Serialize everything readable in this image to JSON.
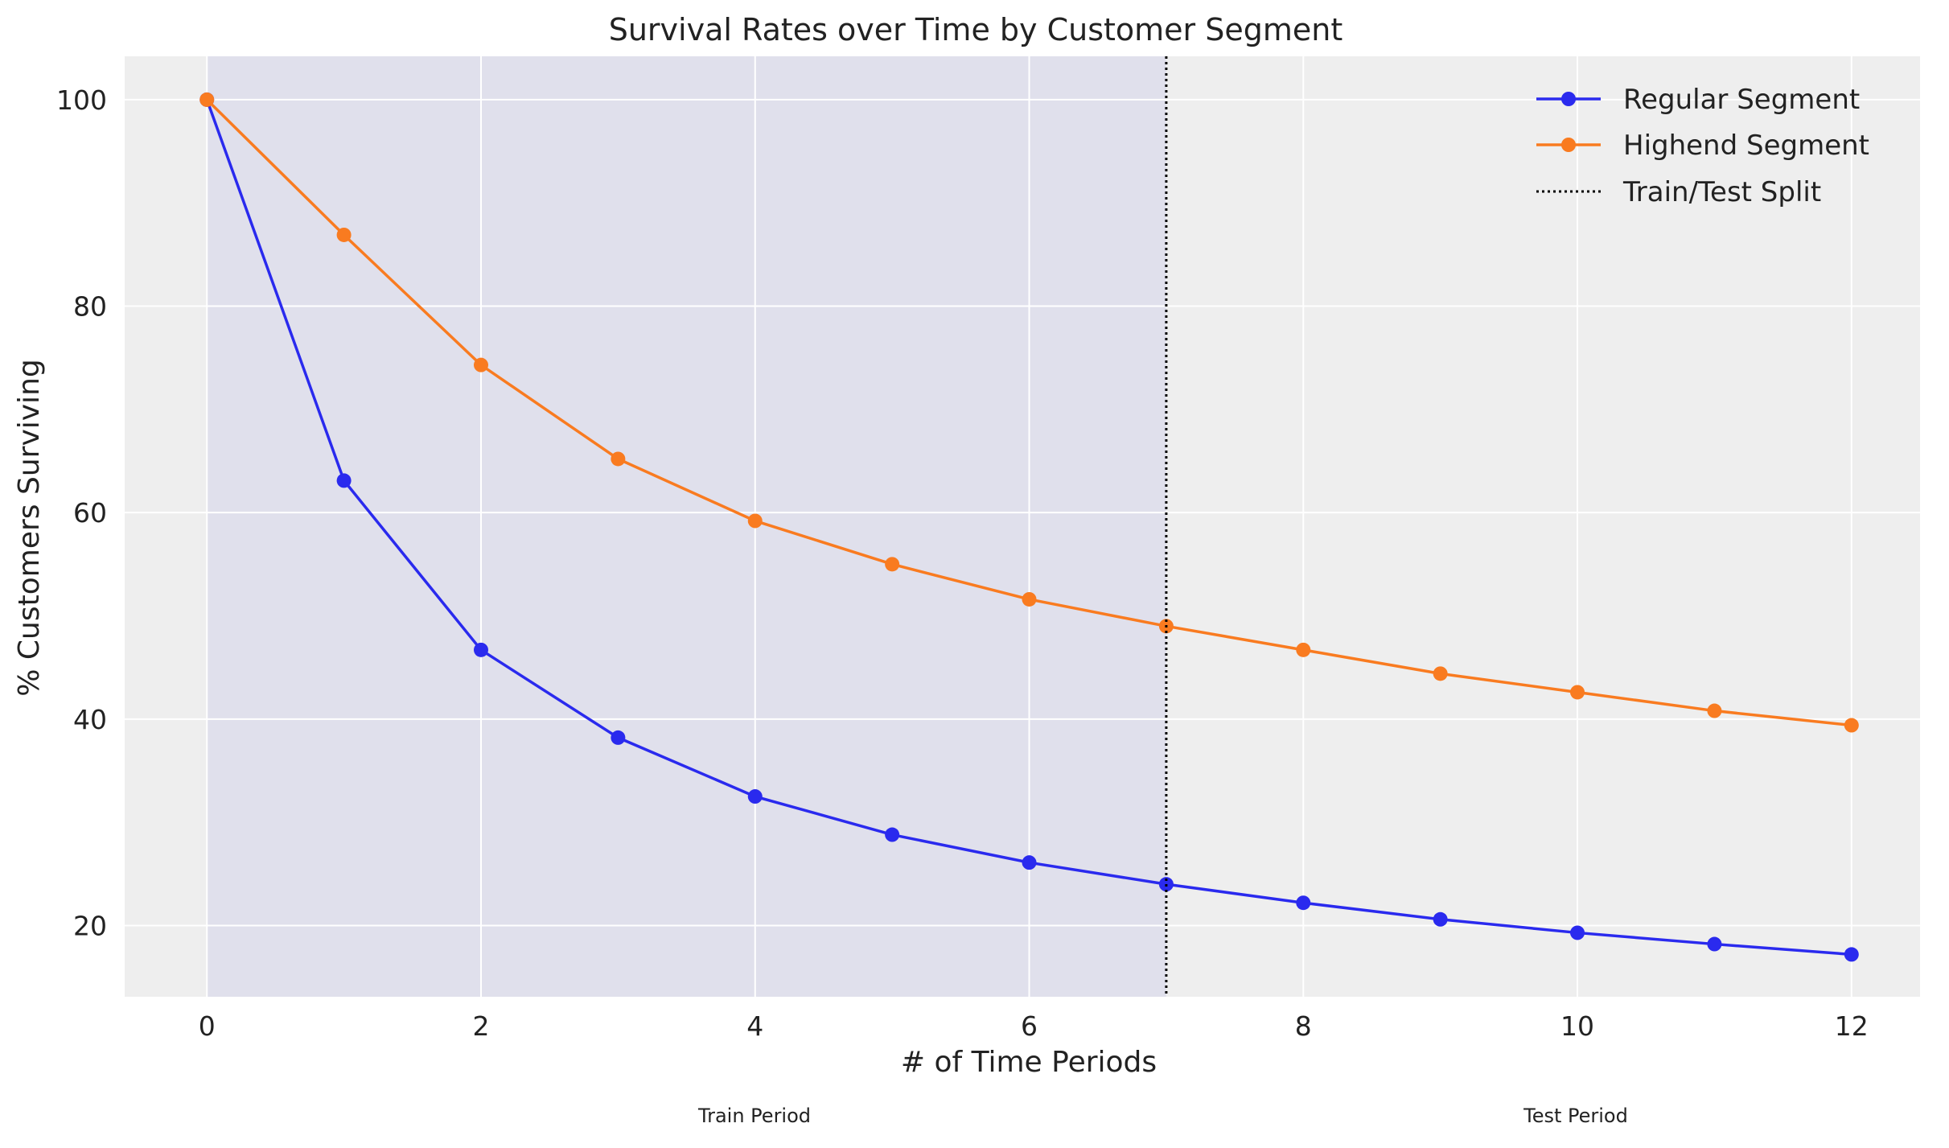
{
  "chart_data": {
    "type": "line",
    "title": "Survival Rates over Time by Customer Segment",
    "xlabel": "# of Time Periods",
    "ylabel": "% Customers Surviving",
    "x": [
      0,
      1,
      2,
      3,
      4,
      5,
      6,
      7,
      8,
      9,
      10,
      11,
      12
    ],
    "xlim": [
      -0.6,
      12.5
    ],
    "ylim": [
      13.1,
      104.2
    ],
    "xticks": [
      0,
      2,
      4,
      6,
      8,
      10,
      12
    ],
    "yticks": [
      20,
      40,
      60,
      80,
      100
    ],
    "grid": true,
    "legend_position": "top-right",
    "series": [
      {
        "name": "Regular Segment",
        "color": "#2a2aee",
        "marker": "circle",
        "values": [
          100,
          63.1,
          46.7,
          38.2,
          32.5,
          28.8,
          26.1,
          24.0,
          22.2,
          20.6,
          19.3,
          18.2,
          17.2
        ]
      },
      {
        "name": "Highend Segment",
        "color": "#f97b20",
        "marker": "circle",
        "values": [
          100,
          86.9,
          74.3,
          65.2,
          59.2,
          55.0,
          51.6,
          49.0,
          46.7,
          44.4,
          42.6,
          40.8,
          39.4
        ]
      }
    ],
    "split": {
      "name": "Train/Test Split",
      "x": 7,
      "style": "dotted",
      "color": "#000000"
    },
    "train_region": {
      "x_start": 0,
      "x_end": 7,
      "color": "#e0e0ec"
    },
    "annotations": [
      {
        "text": "Train Period",
        "color": "#00008b"
      },
      {
        "text": "Test Period",
        "color": "#8b0000"
      }
    ],
    "background": "#eeeeee"
  }
}
